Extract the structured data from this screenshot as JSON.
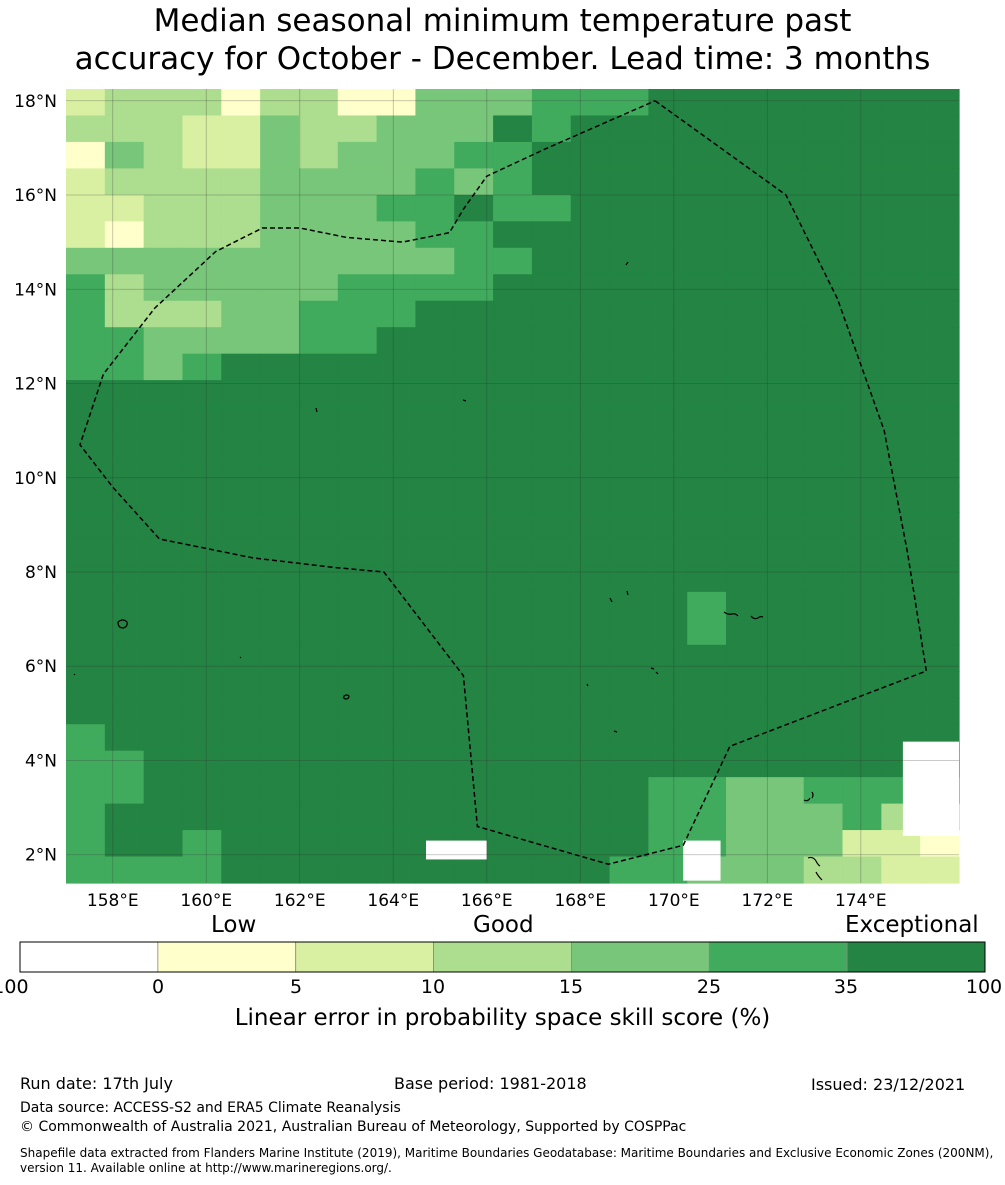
{
  "title": {
    "line1": "Median seasonal minimum temperature past",
    "line2": "accuracy for October - December. Lead time: 3 months"
  },
  "map": {
    "lat_labels": [
      "18°N",
      "16°N",
      "14°N",
      "12°N",
      "10°N",
      "8°N",
      "6°N",
      "4°N",
      "2°N"
    ],
    "lon_labels": [
      "158°E",
      "160°E",
      "162°E",
      "164°E",
      "166°E",
      "168°E",
      "170°E",
      "172°E",
      "174°E"
    ],
    "lat_values": [
      18,
      16,
      14,
      12,
      10,
      8,
      6,
      4,
      2
    ],
    "lon_values": [
      158,
      160,
      162,
      164,
      166,
      168,
      170,
      172,
      174
    ],
    "extent": {
      "lon_min": 157,
      "lon_max": 176.1,
      "lat_min": 1.4,
      "lat_max": 18.25
    },
    "grid_cells": "23 columns x 30 rows of 0.83 deg skill cells; codes 0=below 0, 1=0-5, 2=5-10, 3=10-15, 4=15-25, 5=25-35, 6=35-100",
    "grid_rows": [
      "23331331144455566666666",
      "33322433444656666666666",
      "14322434445566666666666",
      "23333444454566666666666",
      "22333444556556666666666",
      "21333444455666666666666",
      "44444444445566666666666",
      "53444445555666666666666",
      "53334455566666666666666",
      "55444455666666666666666",
      "55456666666666666666666",
      "66666666666666666666666",
      "66666666666666666666666",
      "66666666666666666666666",
      "66666666666666666666666",
      "66666666666666666666666",
      "66666666666666666666666",
      "66666666666666666666666",
      "66666666666666666666666",
      "66666666666666665666666",
      "66666666666666665666666",
      "66666666666666666666666",
      "66666666666666666666666",
      "66666666666666666666666",
      "56666666666666666666666",
      "55666666666666666666666",
      "55666666666666655445555",
      "56666666666666655444533",
      "56656666666666655444221",
      "55556666666666554443322"
    ],
    "eez_boundary": [
      [
        169.6,
        18.0
      ],
      [
        172.4,
        16.0
      ],
      [
        173.5,
        13.8
      ],
      [
        174.5,
        11.0
      ],
      [
        175.0,
        8.4
      ],
      [
        175.4,
        5.9
      ],
      [
        171.2,
        4.3
      ],
      [
        170.2,
        2.2
      ],
      [
        168.6,
        1.8
      ],
      [
        165.8,
        2.6
      ],
      [
        165.5,
        5.8
      ],
      [
        163.8,
        8.0
      ],
      [
        162.7,
        8.1
      ],
      [
        161.0,
        8.3
      ],
      [
        159.0,
        8.7
      ],
      [
        158.0,
        9.8
      ],
      [
        157.3,
        10.7
      ],
      [
        157.8,
        12.2
      ],
      [
        158.9,
        13.6
      ],
      [
        160.2,
        14.8
      ],
      [
        161.2,
        15.3
      ],
      [
        162.0,
        15.3
      ],
      [
        163.0,
        15.1
      ],
      [
        164.2,
        15.0
      ],
      [
        165.2,
        15.2
      ],
      [
        165.5,
        15.7
      ],
      [
        166.0,
        16.4
      ],
      [
        167.3,
        17.0
      ],
      [
        169.6,
        18.0
      ]
    ]
  },
  "colorbar": {
    "labels": {
      "low": "Low",
      "good": "Good",
      "exceptional": "Exceptional"
    },
    "ticks": [
      "-100",
      "0",
      "5",
      "10",
      "15",
      "25",
      "35",
      "100"
    ],
    "colors": [
      "#ffffff",
      "#ffffcc",
      "#d9f0a3",
      "#addd8e",
      "#78c679",
      "#41ab5d",
      "#238443"
    ],
    "title": "Linear error in probability space skill score (%)"
  },
  "footer": {
    "run_date": "Run date: 17th July",
    "base_period": "Base period: 1981-2018",
    "issued": "Issued: 23/12/2021",
    "data_source": "Data source: ACCESS-S2 and ERA5 Climate Reanalysis",
    "copyright": "© Commonwealth of Australia 2021, Australian Bureau of Meteorology, Supported by COSPPac",
    "shapefile_line1": "Shapefile data extracted from Flanders Marine Institute (2019), Maritime Boundaries Geodatabase: Maritime Boundaries and Exclusive Economic Zones (200NM),",
    "shapefile_line2": "version 11. Available online at http://www.marineregions.org/."
  }
}
